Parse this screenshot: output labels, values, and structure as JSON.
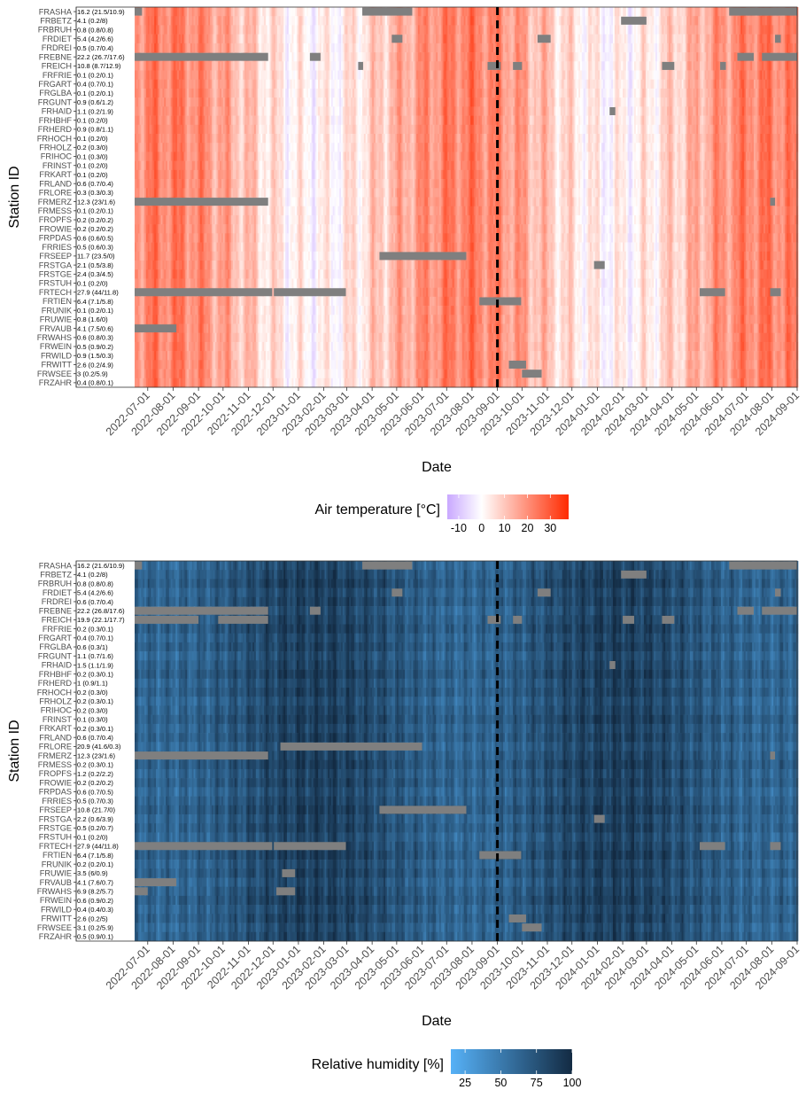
{
  "chart_data": [
    {
      "type": "heatmap",
      "title": "",
      "xlabel": "Date",
      "ylabel": "Station ID",
      "x_range": [
        "2022-06-15",
        "2024-09-01"
      ],
      "x_ticks": [
        "2022-07-01",
        "2022-08-01",
        "2022-09-01",
        "2022-10-01",
        "2022-11-01",
        "2022-12-01",
        "2023-01-01",
        "2023-02-01",
        "2023-03-01",
        "2023-04-01",
        "2023-05-01",
        "2023-06-01",
        "2023-07-01",
        "2023-08-01",
        "2023-09-01",
        "2023-10-01",
        "2023-11-01",
        "2023-12-01",
        "2024-01-01",
        "2024-02-01",
        "2024-03-01",
        "2024-04-01",
        "2024-05-01",
        "2024-06-01",
        "2024-07-01",
        "2024-08-01",
        "2024-09-01"
      ],
      "vline_date": "2023-09-01",
      "legend": {
        "title": "Air temperature [°C]",
        "placement": "bottom",
        "ticks": [
          -10,
          0,
          10,
          20,
          30
        ],
        "range": [
          -15,
          38
        ],
        "colors": [
          "#c9a8ff",
          "#ffffff",
          "#ff2a00"
        ]
      },
      "missing_color": "#7f7f7f",
      "stations": [
        "FRASHA",
        "FRBETZ",
        "FRBRUH",
        "FRDIET",
        "FRDREI",
        "FREBNE",
        "FREICH",
        "FRFRIE",
        "FRGART",
        "FRGLBA",
        "FRGUNT",
        "FRHAID",
        "FRHBHF",
        "FRHERD",
        "FRHOCH",
        "FRHOLZ",
        "FRIHOC",
        "FRINST",
        "FRKART",
        "FRLAND",
        "FRLORE",
        "FRMERZ",
        "FRMESS",
        "FROPFS",
        "FROWIE",
        "FRPDAS",
        "FRRIES",
        "FRSEEP",
        "FRSTGA",
        "FRSTGE",
        "FRSTUH",
        "FRTECH",
        "FRTIEN",
        "FRUNIK",
        "FRUWIE",
        "FRVAUB",
        "FRWAHS",
        "FRWEIN",
        "FRWILD",
        "FRWITT",
        "FRWSEE",
        "FRZAHR"
      ],
      "row_labels": [
        "16.2 (21.5/10.9)",
        "4.1 (0.2/8)",
        "0.8 (0.8/0.8)",
        "5.4 (4.2/6.6)",
        "0.5 (0.7/0.4)",
        "22.2 (26.7/17.6)",
        "10.8 (8.7/12.9)",
        "0.1 (0.2/0.1)",
        "0.4 (0.7/0.1)",
        "0.1 (0.2/0.1)",
        "0.9 (0.6/1.2)",
        "1.1 (0.2/1.9)",
        "0.1 (0.2/0)",
        "0.9 (0.8/1.1)",
        "0.1 (0.2/0)",
        "0.2 (0.3/0)",
        "0.1 (0.3/0)",
        "0.1 (0.2/0)",
        "0.1 (0.2/0)",
        "0.6 (0.7/0.4)",
        "0.3 (0.3/0.3)",
        "12.3 (23/1.6)",
        "0.1 (0.2/0.1)",
        "0.2 (0.2/0.2)",
        "0.2 (0.2/0.2)",
        "0.6 (0.6/0.5)",
        "0.5 (0.6/0.3)",
        "11.7 (23.5/0)",
        "2.1 (0.5/3.8)",
        "2.4 (0.3/4.5)",
        "0.1 (0.2/0)",
        "27.9 (44/11.8)",
        "6.4 (7.1/5.8)",
        "0.1 (0.2/0.1)",
        "0.8 (1.6/0)",
        "4.1 (7.5/0.6)",
        "0.6 (0.8/0.3)",
        "0.5 (0.9/0.2)",
        "0.9 (1.5/0.3)",
        "2.6 (0.2/4.9)",
        "3 (0.2/5.9)",
        "0.4 (0.8/0.1)"
      ],
      "gaps": [
        {
          "station": "FRASHA",
          "start": "2022-06-15",
          "end": "2022-06-24"
        },
        {
          "station": "FRASHA",
          "start": "2023-03-20",
          "end": "2023-05-20"
        },
        {
          "station": "FRASHA",
          "start": "2024-06-10",
          "end": "2024-09-01"
        },
        {
          "station": "FRBETZ",
          "start": "2024-01-30",
          "end": "2024-03-01"
        },
        {
          "station": "FRDIET",
          "start": "2023-04-25",
          "end": "2023-05-08"
        },
        {
          "station": "FRDIET",
          "start": "2023-10-20",
          "end": "2023-11-05"
        },
        {
          "station": "FRDIET",
          "start": "2024-08-05",
          "end": "2024-08-12"
        },
        {
          "station": "FREBNE",
          "start": "2022-06-15",
          "end": "2022-11-25"
        },
        {
          "station": "FREBNE",
          "start": "2023-01-15",
          "end": "2023-01-28"
        },
        {
          "station": "FREBNE",
          "start": "2024-06-20",
          "end": "2024-07-10"
        },
        {
          "station": "FREBNE",
          "start": "2024-07-20",
          "end": "2024-09-01"
        },
        {
          "station": "FREICH",
          "start": "2023-03-15",
          "end": "2023-03-21"
        },
        {
          "station": "FREICH",
          "start": "2023-08-20",
          "end": "2023-09-05"
        },
        {
          "station": "FREICH",
          "start": "2023-09-20",
          "end": "2023-10-01"
        },
        {
          "station": "FREICH",
          "start": "2024-03-20",
          "end": "2024-04-04"
        },
        {
          "station": "FREICH",
          "start": "2024-05-30",
          "end": "2024-06-06"
        },
        {
          "station": "FRHAID",
          "start": "2024-01-16",
          "end": "2024-01-23"
        },
        {
          "station": "FRMERZ",
          "start": "2022-06-15",
          "end": "2022-11-25"
        },
        {
          "station": "FRMERZ",
          "start": "2024-07-30",
          "end": "2024-08-05"
        },
        {
          "station": "FRSEEP",
          "start": "2023-04-10",
          "end": "2023-07-25"
        },
        {
          "station": "FRSTGA",
          "start": "2023-12-28",
          "end": "2024-01-10"
        },
        {
          "station": "FRTECH",
          "start": "2022-06-15",
          "end": "2022-11-30"
        },
        {
          "station": "FRTECH",
          "start": "2022-12-02",
          "end": "2023-02-28"
        },
        {
          "station": "FRTECH",
          "start": "2024-05-05",
          "end": "2024-06-05"
        },
        {
          "station": "FRTECH",
          "start": "2024-07-30",
          "end": "2024-08-12"
        },
        {
          "station": "FRTIEN",
          "start": "2023-08-10",
          "end": "2023-09-30"
        },
        {
          "station": "FRVAUB",
          "start": "2022-06-15",
          "end": "2022-08-05"
        },
        {
          "station": "FRWITT",
          "start": "2023-09-15",
          "end": "2023-10-06"
        },
        {
          "station": "FRWSEE",
          "start": "2023-10-01",
          "end": "2023-10-25"
        }
      ]
    },
    {
      "type": "heatmap",
      "title": "",
      "xlabel": "Date",
      "ylabel": "Station ID",
      "x_range": [
        "2022-06-15",
        "2024-09-01"
      ],
      "x_ticks": [
        "2022-07-01",
        "2022-08-01",
        "2022-09-01",
        "2022-10-01",
        "2022-11-01",
        "2022-12-01",
        "2023-01-01",
        "2023-02-01",
        "2023-03-01",
        "2023-04-01",
        "2023-05-01",
        "2023-06-01",
        "2023-07-01",
        "2023-08-01",
        "2023-09-01",
        "2023-10-01",
        "2023-11-01",
        "2023-12-01",
        "2024-01-01",
        "2024-02-01",
        "2024-03-01",
        "2024-04-01",
        "2024-05-01",
        "2024-06-01",
        "2024-07-01",
        "2024-08-01",
        "2024-09-01"
      ],
      "vline_date": "2023-09-01",
      "legend": {
        "title": "Relative humidity [%]",
        "placement": "bottom",
        "ticks": [
          25,
          50,
          75,
          100
        ],
        "range": [
          15,
          100
        ],
        "colors": [
          "#56b1f7",
          "#132b43"
        ]
      },
      "missing_color": "#7f7f7f",
      "stations": [
        "FRASHA",
        "FRBETZ",
        "FRBRUH",
        "FRDIET",
        "FRDREI",
        "FREBNE",
        "FREICH",
        "FRFRIE",
        "FRGART",
        "FRGLBA",
        "FRGUNT",
        "FRHAID",
        "FRHBHF",
        "FRHERD",
        "FRHOCH",
        "FRHOLZ",
        "FRIHOC",
        "FRINST",
        "FRKART",
        "FRLAND",
        "FRLORE",
        "FRMERZ",
        "FRMESS",
        "FROPFS",
        "FROWIE",
        "FRPDAS",
        "FRRIES",
        "FRSEEP",
        "FRSTGA",
        "FRSTGE",
        "FRSTUH",
        "FRTECH",
        "FRTIEN",
        "FRUNIK",
        "FRUWIE",
        "FRVAUB",
        "FRWAHS",
        "FRWEIN",
        "FRWILD",
        "FRWITT",
        "FRWSEE",
        "FRZAHR"
      ],
      "row_labels": [
        "16.2 (21.6/10.9)",
        "4.1 (0.2/8)",
        "0.8 (0.8/0.8)",
        "5.4 (4.2/6.6)",
        "0.6 (0.7/0.4)",
        "22.2 (26.8/17.6)",
        "19.9 (22.1/17.7)",
        "0.2 (0.3/0.1)",
        "0.4 (0.7/0.1)",
        "0.6 (0.3/1)",
        "1.1 (0.7/1.6)",
        "1.5 (1.1/1.9)",
        "0.2 (0.3/0.1)",
        "1 (0.9/1.1)",
        "0.2 (0.3/0)",
        "0.2 (0.3/0.1)",
        "0.2 (0.3/0)",
        "0.1 (0.3/0)",
        "0.2 (0.3/0.1)",
        "0.6 (0.7/0.4)",
        "20.9 (41.6/0.3)",
        "12.3 (23/1.6)",
        "0.2 (0.3/0.1)",
        "1.2 (0.2/2.2)",
        "0.2 (0.2/0.2)",
        "0.6 (0.7/0.5)",
        "0.5 (0.7/0.3)",
        "10.8 (21.7/0)",
        "2.2 (0.6/3.9)",
        "0.5 (0.2/0.7)",
        "0.1 (0.2/0)",
        "27.9 (44/11.8)",
        "6.4 (7.1/5.8)",
        "0.2 (0.2/0.1)",
        "3.5 (6/0.9)",
        "4.1 (7.6/0.7)",
        "6.9 (8.2/5.7)",
        "0.6 (0.9/0.2)",
        "0.4 (0.4/0.3)",
        "2.6 (0.2/5)",
        "3.1 (0.2/5.9)",
        "0.5 (0.9/0.1)"
      ],
      "gaps": [
        {
          "station": "FRASHA",
          "start": "2022-06-15",
          "end": "2022-06-24"
        },
        {
          "station": "FRASHA",
          "start": "2023-03-20",
          "end": "2023-05-20"
        },
        {
          "station": "FRASHA",
          "start": "2024-06-10",
          "end": "2024-09-01"
        },
        {
          "station": "FRBETZ",
          "start": "2024-01-30",
          "end": "2024-03-01"
        },
        {
          "station": "FRDIET",
          "start": "2023-04-25",
          "end": "2023-05-08"
        },
        {
          "station": "FRDIET",
          "start": "2023-10-20",
          "end": "2023-11-05"
        },
        {
          "station": "FRDIET",
          "start": "2024-08-05",
          "end": "2024-08-12"
        },
        {
          "station": "FREBNE",
          "start": "2022-06-15",
          "end": "2022-11-25"
        },
        {
          "station": "FREBNE",
          "start": "2023-01-15",
          "end": "2023-01-28"
        },
        {
          "station": "FREBNE",
          "start": "2024-06-20",
          "end": "2024-07-10"
        },
        {
          "station": "FREBNE",
          "start": "2024-07-20",
          "end": "2024-09-01"
        },
        {
          "station": "FREICH",
          "start": "2022-06-15",
          "end": "2022-09-01"
        },
        {
          "station": "FREICH",
          "start": "2022-09-25",
          "end": "2022-11-25"
        },
        {
          "station": "FREICH",
          "start": "2023-08-20",
          "end": "2023-09-05"
        },
        {
          "station": "FREICH",
          "start": "2023-09-20",
          "end": "2023-10-01"
        },
        {
          "station": "FREICH",
          "start": "2024-02-01",
          "end": "2024-02-15"
        },
        {
          "station": "FREICH",
          "start": "2024-03-20",
          "end": "2024-04-04"
        },
        {
          "station": "FRHAID",
          "start": "2024-01-16",
          "end": "2024-01-23"
        },
        {
          "station": "FRLORE",
          "start": "2022-12-10",
          "end": "2023-06-01"
        },
        {
          "station": "FRMERZ",
          "start": "2022-06-15",
          "end": "2022-11-25"
        },
        {
          "station": "FRMERZ",
          "start": "2024-07-30",
          "end": "2024-08-05"
        },
        {
          "station": "FRSEEP",
          "start": "2023-04-10",
          "end": "2023-07-25"
        },
        {
          "station": "FRSTGA",
          "start": "2023-12-28",
          "end": "2024-01-10"
        },
        {
          "station": "FRTECH",
          "start": "2022-06-15",
          "end": "2022-11-30"
        },
        {
          "station": "FRTECH",
          "start": "2022-12-02",
          "end": "2023-02-28"
        },
        {
          "station": "FRTECH",
          "start": "2024-05-05",
          "end": "2024-06-05"
        },
        {
          "station": "FRTECH",
          "start": "2024-07-30",
          "end": "2024-08-12"
        },
        {
          "station": "FRTIEN",
          "start": "2023-08-10",
          "end": "2023-09-30"
        },
        {
          "station": "FRUWIE",
          "start": "2022-12-12",
          "end": "2022-12-28"
        },
        {
          "station": "FRVAUB",
          "start": "2022-06-15",
          "end": "2022-08-05"
        },
        {
          "station": "FRWAHS",
          "start": "2022-06-15",
          "end": "2022-07-01"
        },
        {
          "station": "FRWAHS",
          "start": "2022-12-05",
          "end": "2022-12-28"
        },
        {
          "station": "FRWITT",
          "start": "2023-09-15",
          "end": "2023-10-06"
        },
        {
          "station": "FRWSEE",
          "start": "2023-10-01",
          "end": "2023-10-25"
        }
      ]
    }
  ]
}
